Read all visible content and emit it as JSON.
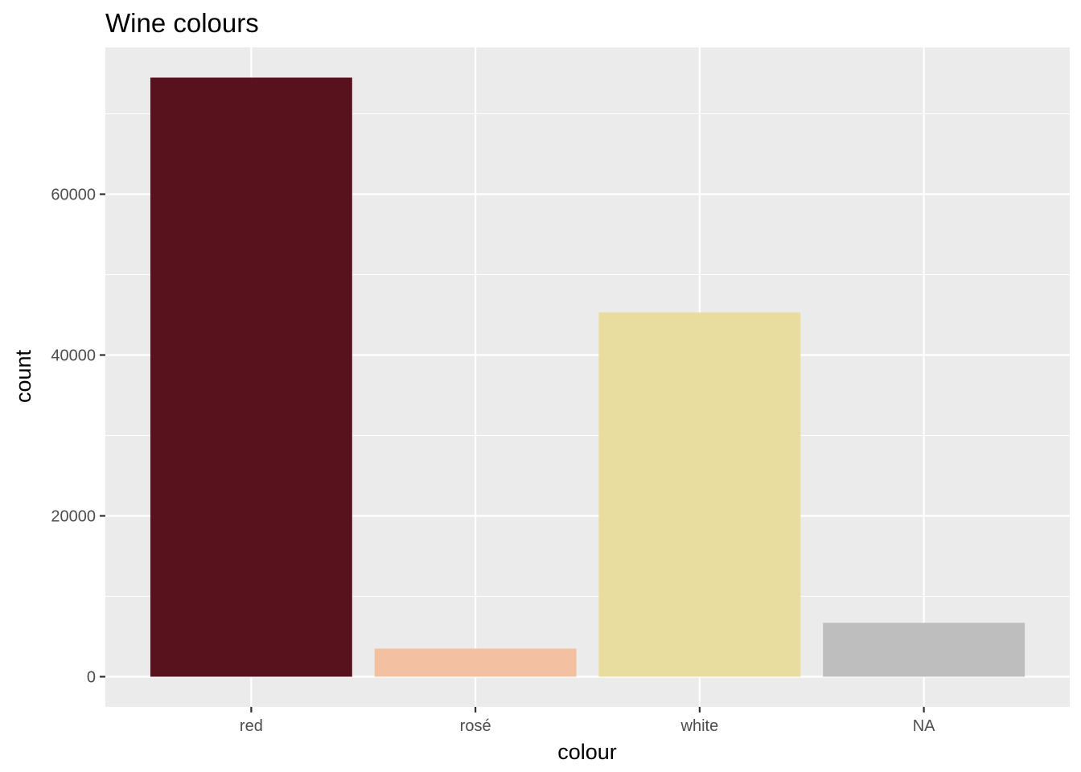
{
  "chart_data": {
    "type": "bar",
    "title": "Wine colours",
    "xlabel": "colour",
    "ylabel": "count",
    "categories": [
      "red",
      "rosé",
      "white",
      "NA"
    ],
    "values": [
      74500,
      3500,
      45300,
      6700
    ],
    "colors": [
      "#58121d",
      "#f4c0a2",
      "#e9dc9f",
      "#bebebe"
    ],
    "ylim": [
      -3750,
      78250
    ],
    "yticks": [
      0,
      20000,
      40000,
      60000
    ],
    "ytick_labels": [
      "0",
      "20000",
      "40000",
      "60000"
    ],
    "yminor": [
      10000,
      30000,
      50000,
      70000
    ],
    "grid": true,
    "legend": "none",
    "panel_background": "#ebebeb",
    "grid_color": "#ffffff"
  }
}
